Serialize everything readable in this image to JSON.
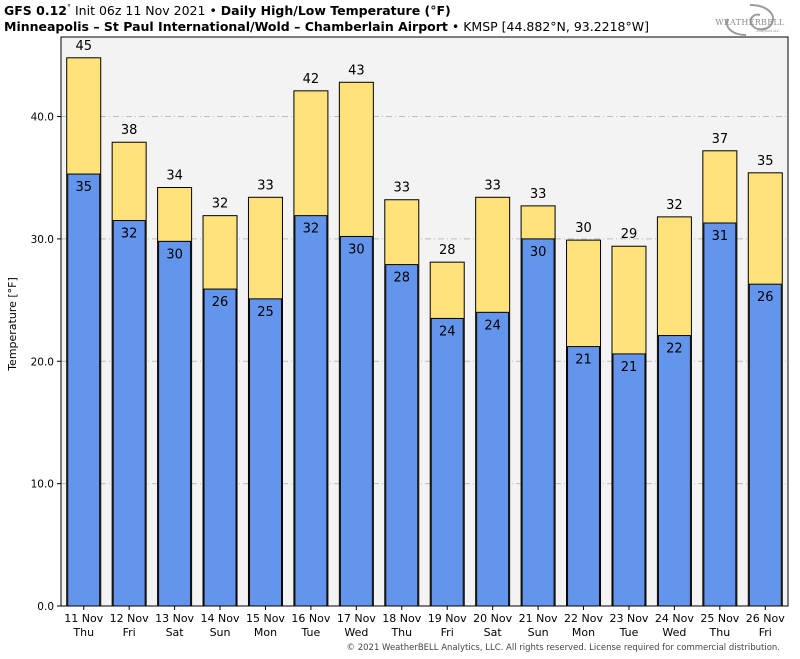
{
  "header": {
    "model": "GFS 0.12",
    "model_deg": "°",
    "init": "Init 06z 11 Nov 2021",
    "sep": "•",
    "title": "Daily High/Low Temperature (°F)",
    "station": "Minneapolis – St Paul International/Wold – Chamberlain Airport",
    "location": "KMSP [44.882°N, 93.2218°W]"
  },
  "logo": {
    "text": "WEATHERBELL",
    "tagline": "Analytics LLC"
  },
  "footer": {
    "text": "© 2021 WeatherBELL Analytics, LLC. All rights reserved. License required for commercial distribution."
  },
  "colors": {
    "high": "#ffe27a",
    "low": "#6495ed",
    "plot_bg": "#f3f3f3",
    "outline": "#000000",
    "grid": "#bbbbbb"
  },
  "chart_data": {
    "type": "bar",
    "ylabel": "Temperature [°F]",
    "ylim": [
      0,
      46.5
    ],
    "yticks": [
      0,
      10,
      20,
      30,
      40
    ],
    "ytick_labels": [
      "0.0",
      "10.0",
      "20.0",
      "30.0",
      "40.0"
    ],
    "grid": true,
    "categories": [
      [
        "11 Nov",
        "Thu"
      ],
      [
        "12 Nov",
        "Fri"
      ],
      [
        "13 Nov",
        "Sat"
      ],
      [
        "14 Nov",
        "Sun"
      ],
      [
        "15 Nov",
        "Mon"
      ],
      [
        "16 Nov",
        "Tue"
      ],
      [
        "17 Nov",
        "Wed"
      ],
      [
        "18 Nov",
        "Thu"
      ],
      [
        "19 Nov",
        "Fri"
      ],
      [
        "20 Nov",
        "Sat"
      ],
      [
        "21 Nov",
        "Sun"
      ],
      [
        "22 Nov",
        "Mon"
      ],
      [
        "23 Nov",
        "Tue"
      ],
      [
        "24 Nov",
        "Wed"
      ],
      [
        "25 Nov",
        "Thu"
      ],
      [
        "26 Nov",
        "Fri"
      ]
    ],
    "series": [
      {
        "key": "high",
        "values": [
          44.8,
          37.9,
          34.2,
          31.9,
          33.4,
          42.1,
          42.8,
          33.2,
          28.1,
          33.4,
          32.7,
          29.9,
          29.4,
          31.8,
          37.2,
          35.4
        ],
        "labels": [
          "45",
          "38",
          "34",
          "32",
          "33",
          "42",
          "43",
          "33",
          "28",
          "33",
          "33",
          "30",
          "29",
          "32",
          "37",
          "35"
        ]
      },
      {
        "key": "low",
        "values": [
          35.3,
          31.5,
          29.8,
          25.9,
          25.1,
          31.9,
          30.2,
          27.9,
          23.5,
          24.0,
          30.0,
          21.2,
          20.6,
          22.1,
          31.3,
          26.3
        ],
        "labels": [
          "35",
          "32",
          "30",
          "26",
          "25",
          "32",
          "30",
          "28",
          "24",
          "24",
          "30",
          "21",
          "21",
          "22",
          "31",
          "26"
        ]
      }
    ]
  }
}
